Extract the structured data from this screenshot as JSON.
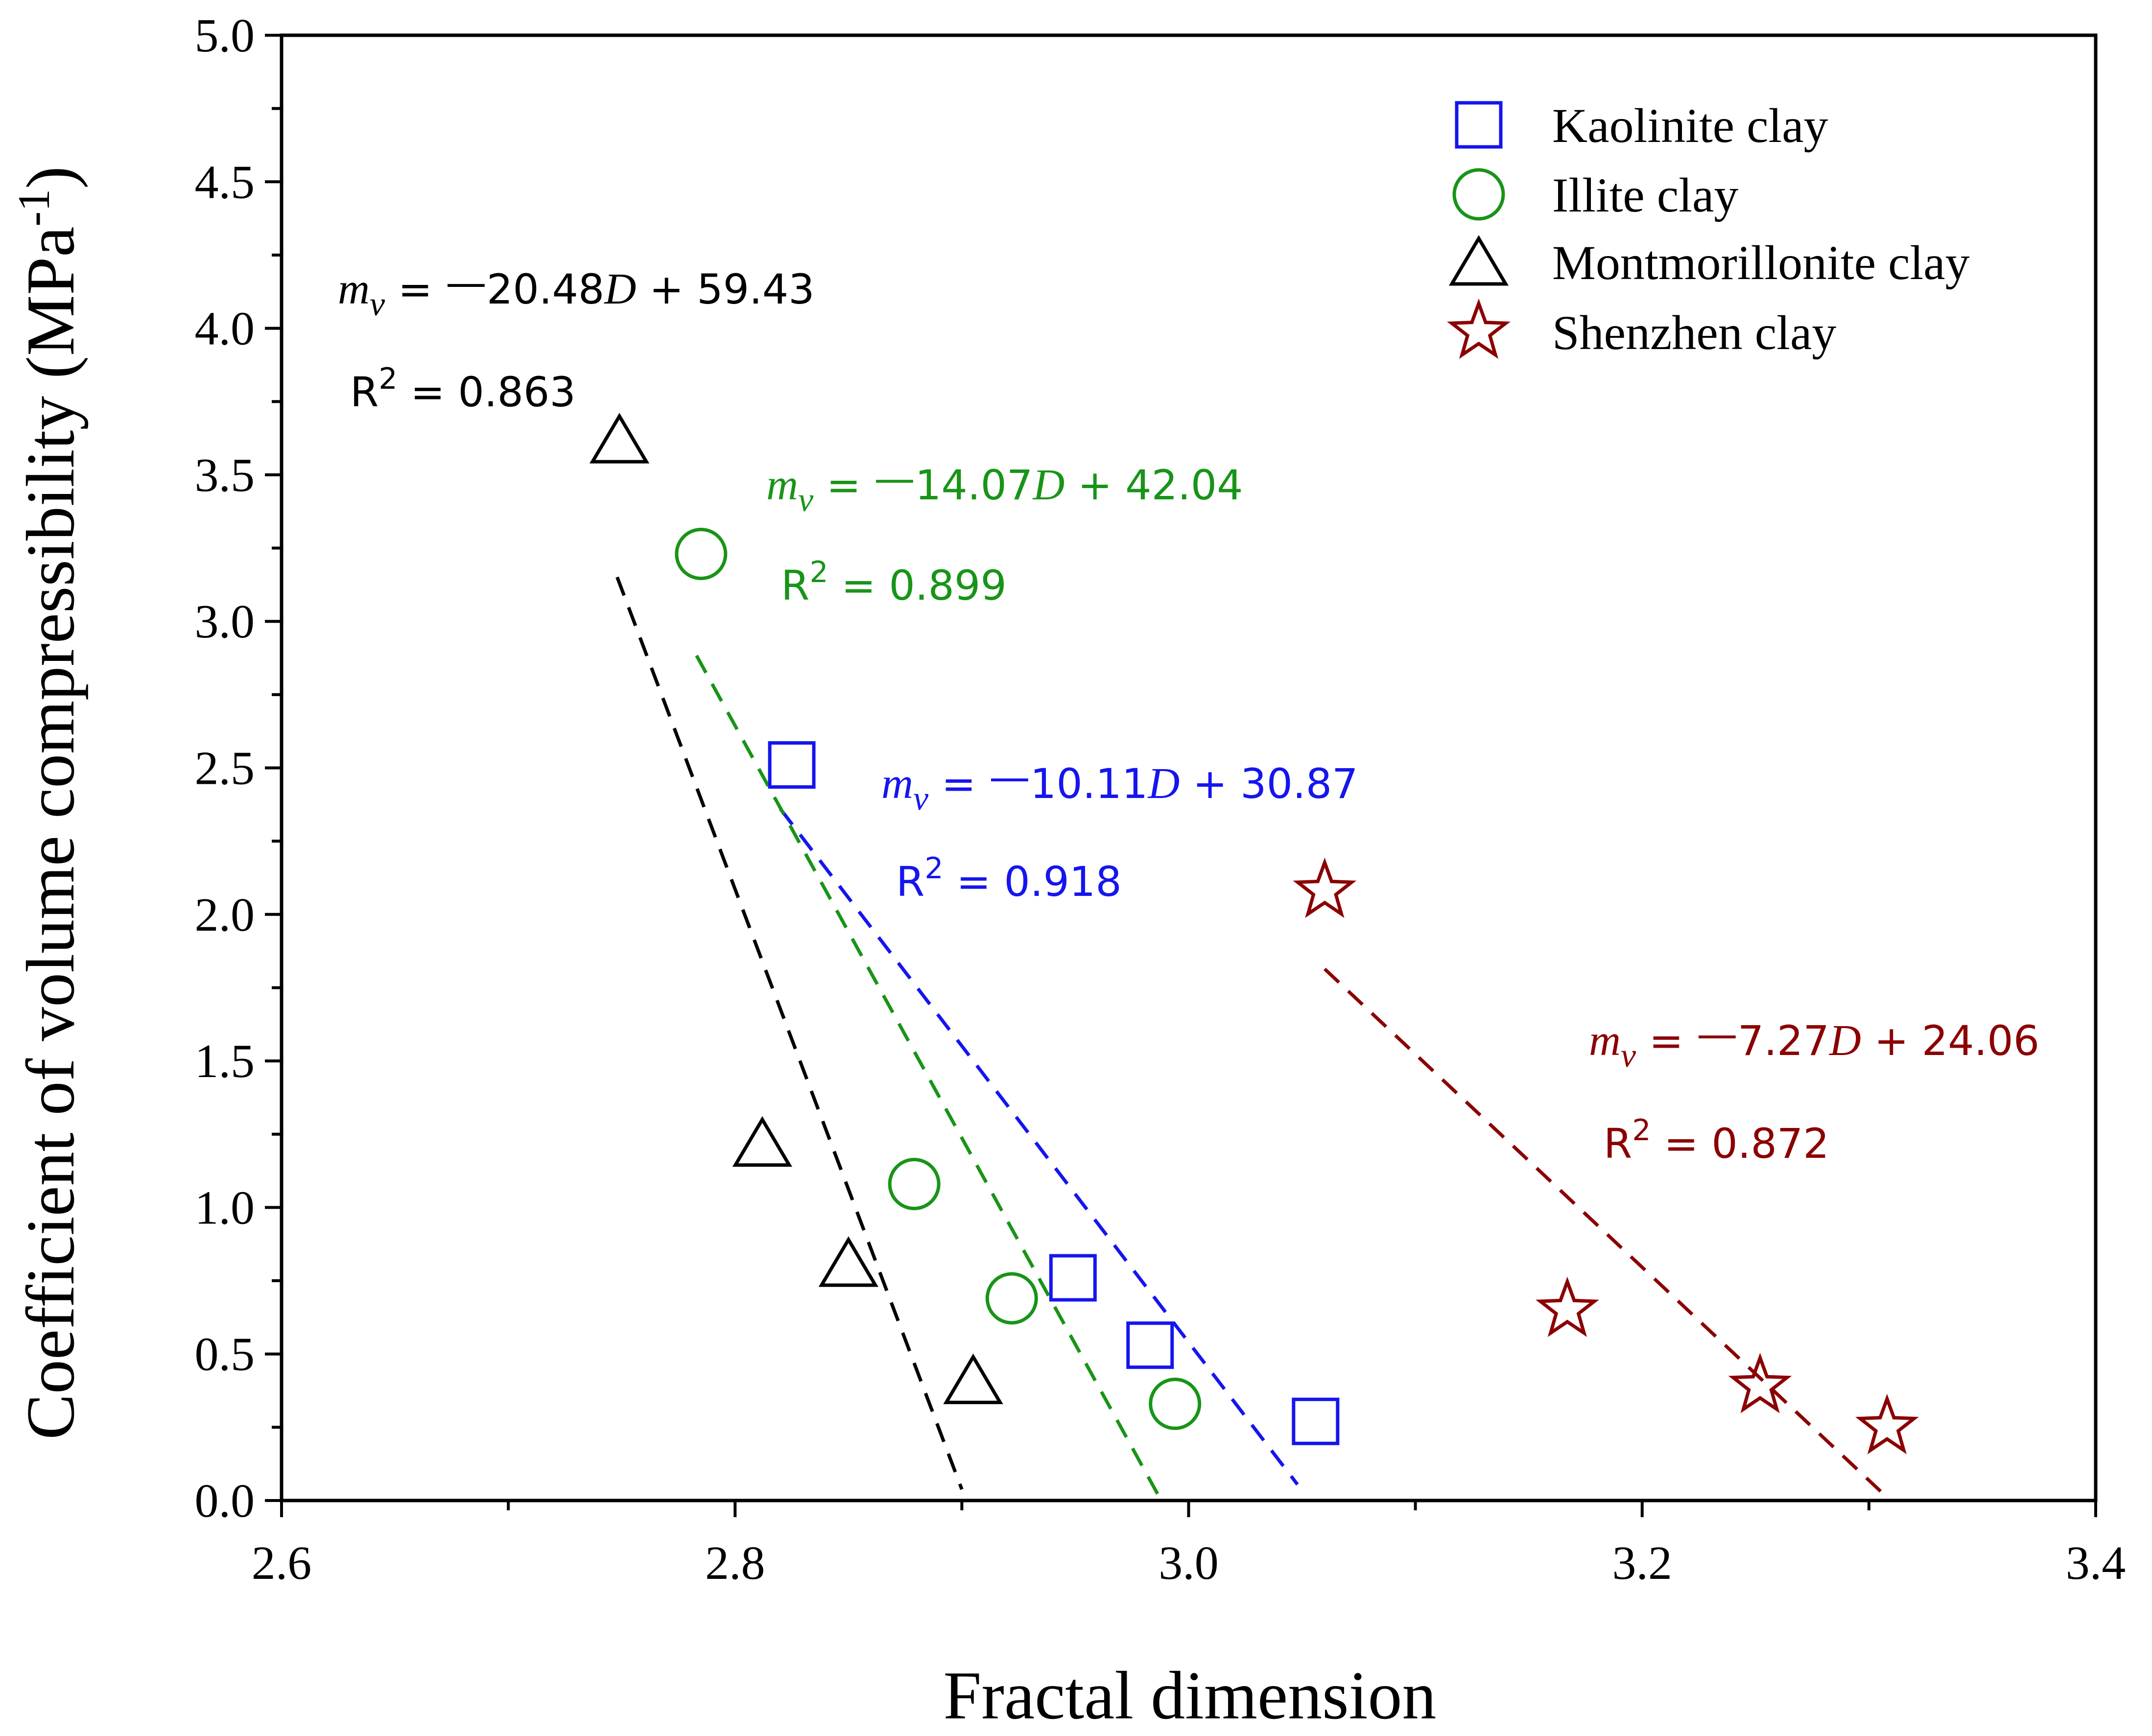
{
  "chart_data": {
    "type": "scatter",
    "title": "",
    "xlabel": "Fractal dimension",
    "ylabel": "Coefficient of volume compressibility  (MPa",
    "ylabel_sup": "-1",
    "ylabel_close": ")",
    "xlim": [
      2.6,
      3.4
    ],
    "ylim": [
      0.0,
      5.0
    ],
    "x_ticks": [
      2.6,
      2.8,
      3.0,
      3.2,
      3.4
    ],
    "x_tick_labels": [
      "2.6",
      "2.8",
      "3.0",
      "3.2",
      "3.4"
    ],
    "y_ticks": [
      0.0,
      0.5,
      1.0,
      1.5,
      2.0,
      2.5,
      3.0,
      3.5,
      4.0,
      4.5,
      5.0
    ],
    "y_tick_labels": [
      "0.0",
      "0.5",
      "1.0",
      "1.5",
      "2.0",
      "2.5",
      "3.0",
      "3.5",
      "4.0",
      "4.5",
      "5.0"
    ],
    "grid": false,
    "legend_position": "top-right",
    "series": [
      {
        "name": "Kaolinite clay",
        "marker": "square",
        "color": "#1515ee",
        "x": [
          2.825,
          2.949,
          2.983,
          3.056
        ],
        "y": [
          2.51,
          0.76,
          0.53,
          0.27
        ],
        "fit": {
          "x_range": [
            2.82,
            3.048
          ],
          "slope": -10.11,
          "intercept": 30.87
        },
        "equation": {
          "prefix": " = ",
          "dash": "—",
          "coef": "10.11",
          "tail": " + 30.87"
        },
        "r2_label": "R",
        "r2_sup": "2",
        "r2_value": " = 0.918"
      },
      {
        "name": "Illite clay",
        "marker": "circle",
        "color": "#189418",
        "x": [
          2.785,
          2.879,
          2.922,
          2.994
        ],
        "y": [
          3.23,
          1.08,
          0.69,
          0.33
        ],
        "fit": {
          "x_range": [
            2.783,
            2.988
          ],
          "slope": -14.07,
          "intercept": 42.04
        },
        "equation": {
          "prefix": " = ",
          "dash": "—",
          "coef": "14.07",
          "tail": " + 42.04"
        },
        "r2_label": "R",
        "r2_sup": "2",
        "r2_value": " = 0.899"
      },
      {
        "name": "Montmorillonite clay",
        "marker": "triangle",
        "color": "#000000",
        "x": [
          2.749,
          2.812,
          2.85,
          2.905
        ],
        "y": [
          3.62,
          1.22,
          0.81,
          0.41
        ],
        "fit": {
          "x_range": [
            2.748,
            2.9
          ],
          "slope": -20.48,
          "intercept": 59.43
        },
        "equation": {
          "prefix": " = ",
          "dash": "—",
          "coef": "20.48",
          "tail": " + 59.43"
        },
        "r2_label": "R",
        "r2_sup": "2",
        "r2_value": " = 0.863"
      },
      {
        "name": "Shenzhen clay",
        "marker": "star",
        "color": "#8b0000",
        "x": [
          3.06,
          3.167,
          3.252,
          3.308
        ],
        "y": [
          2.08,
          0.65,
          0.39,
          0.25
        ],
        "fit": {
          "x_range": [
            3.06,
            3.306
          ],
          "slope": -7.27,
          "intercept": 24.06
        },
        "equation": {
          "prefix": " = ",
          "dash": "—",
          "coef": "7.27",
          "tail": " + 24.06"
        },
        "r2_label": "R",
        "r2_sup": "2",
        "r2_value": " = 0.872"
      }
    ],
    "annotation_symbols": {
      "m": "m",
      "v": "v",
      "D": "D"
    }
  }
}
